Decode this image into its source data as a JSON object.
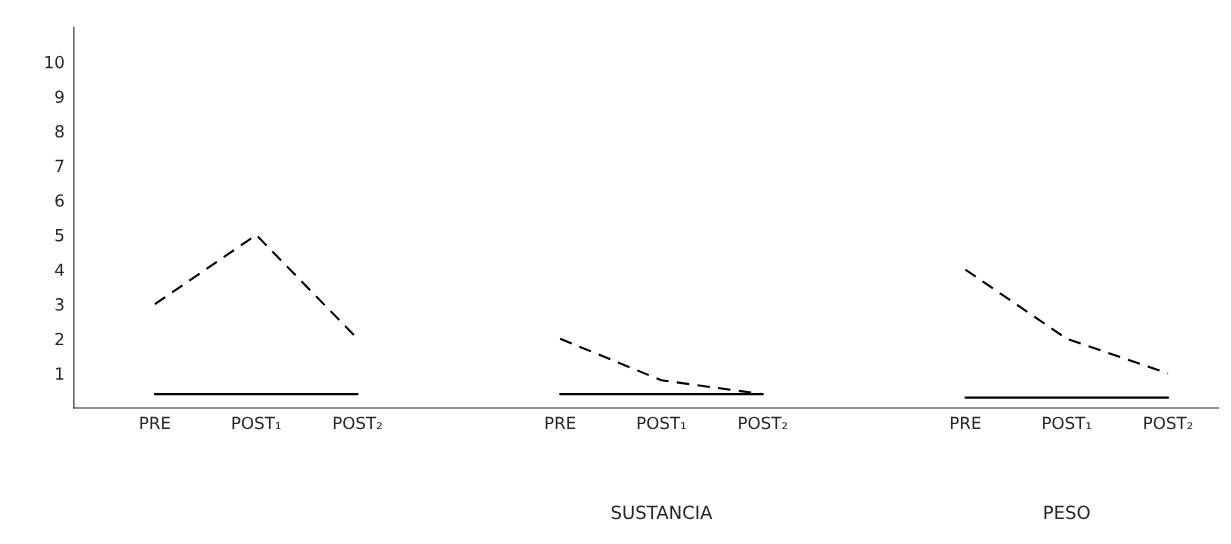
{
  "chart_data": {
    "type": "line",
    "categories": [
      "PRE",
      "POST₁",
      "POST₂",
      null,
      "PRE",
      "POST₁",
      "POST₂",
      null,
      "PRE",
      "POST₁",
      "POST₂"
    ],
    "series": [
      {
        "color": "#000000",
        "line_style": "dashed",
        "values": [
          3,
          5,
          2,
          null,
          2,
          0.8,
          0.4,
          null,
          4,
          2,
          1
        ]
      },
      {
        "color": "#000000",
        "line_style": "solid",
        "values": [
          0.4,
          0.4,
          0.4,
          null,
          0.4,
          0.4,
          0.4,
          null,
          0.3,
          0.3,
          0.3
        ]
      }
    ],
    "ylim": [
      0,
      11
    ],
    "yticks": [
      1,
      2,
      3,
      4,
      5,
      6,
      7,
      8,
      9,
      10
    ],
    "annotations": [
      "SUSTANCIA",
      "PESO"
    ],
    "grid": false,
    "legend": false,
    "marker": "none"
  }
}
